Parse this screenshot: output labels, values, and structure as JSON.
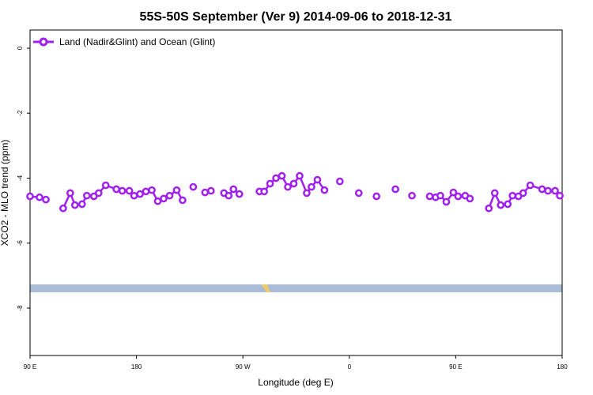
{
  "chart_data": {
    "type": "line",
    "title": "55S-50S September (Ver 9)   2014-09-06 to 2018-12-31",
    "x_label": "Longitude (deg E)",
    "y_label": "XCO2 - MLO trend (ppm)",
    "legend": "top-left",
    "x": [
      90,
      98,
      103.4,
      111,
      118,
      124,
      128,
      134,
      138,
      144,
      148,
      154,
      163,
      168,
      174,
      178,
      183,
      188,
      193,
      198,
      203,
      208,
      214,
      219,
      223,
      228,
      233,
      238,
      243,
      248,
      254,
      258,
      262,
      267,
      275,
      284,
      288,
      293,
      298,
      303,
      308,
      313,
      318,
      324,
      328,
      333,
      339,
      345,
      352,
      360,
      368,
      375,
      383,
      391,
      399,
      406,
      413,
      420,
      428,
      433,
      437,
      442,
      448,
      452,
      458,
      462,
      470,
      478,
      483,
      488,
      494,
      498,
      503,
      507,
      513,
      523,
      528,
      534,
      538
    ],
    "series": [
      {
        "name": "Land (Nadir&Glint) and Ocean (Glint)",
        "color": "#a020f0",
        "values": [
          -4.56,
          -4.59,
          -4.66,
          null,
          -4.93,
          -4.46,
          -4.83,
          -4.8,
          -4.54,
          -4.56,
          -4.46,
          -4.22,
          -4.34,
          -4.39,
          -4.39,
          -4.54,
          -4.49,
          -4.41,
          -4.37,
          -4.71,
          -4.63,
          -4.54,
          -4.37,
          -4.68,
          null,
          -4.27,
          null,
          -4.44,
          -4.39,
          null,
          -4.46,
          -4.54,
          -4.34,
          -4.49,
          null,
          -4.41,
          -4.41,
          -4.17,
          -4.0,
          -3.93,
          -4.27,
          -4.17,
          -3.93,
          -4.46,
          -4.27,
          -4.05,
          -4.37,
          null,
          -4.1,
          null,
          -4.46,
          null,
          -4.56,
          null,
          -4.34,
          null,
          -4.54,
          null,
          -4.56,
          -4.59,
          -4.54,
          -4.73,
          -4.44,
          -4.56,
          -4.54,
          -4.63,
          null,
          -4.93,
          -4.46,
          -4.83,
          -4.8,
          -4.54,
          -4.56,
          -4.46,
          -4.22,
          -4.34,
          -4.39,
          -4.39,
          -4.54
        ]
      }
    ],
    "xlim": [
      90,
      540
    ],
    "xticks": [
      {
        "value": 90,
        "label": "90 E"
      },
      180,
      {
        "value": 270,
        "label": "90 W"
      },
      {
        "value": 360,
        "label": "0"
      },
      {
        "value": 450,
        "label": "90 E"
      },
      {
        "value": 540,
        "label": "180"
      }
    ],
    "ylim": [
      -9.46,
      0.56
    ],
    "yticks": [
      0,
      -2,
      -4,
      -6,
      -8
    ]
  }
}
